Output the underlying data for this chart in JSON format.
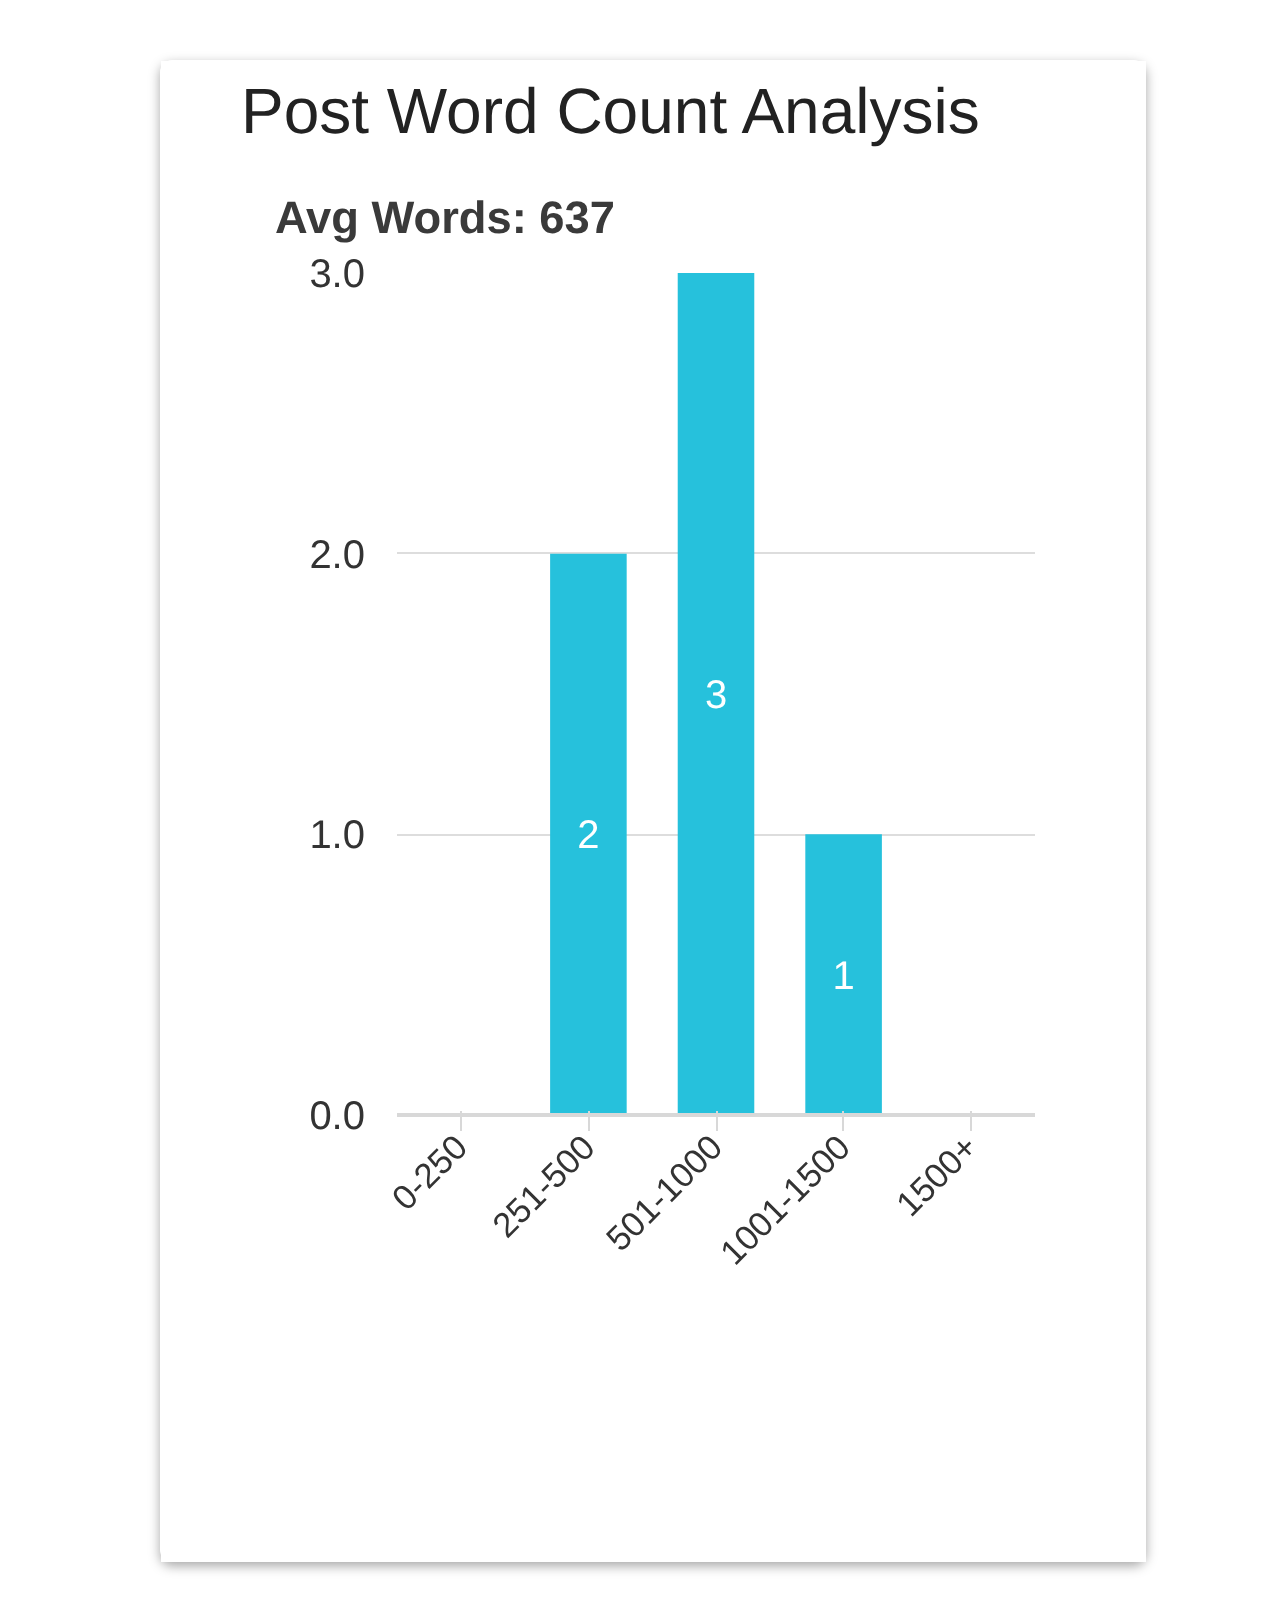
{
  "chart_data": {
    "type": "bar",
    "title": "Post Word Count Analysis",
    "subtitle": "Avg Words: 637",
    "categories": [
      "0-250",
      "251-500",
      "501-1000",
      "1001-1500",
      "1500+"
    ],
    "values": [
      0,
      2,
      3,
      1,
      0
    ],
    "value_labels": [
      null,
      "2",
      "3",
      "1",
      null
    ],
    "color": "#26c1dc",
    "ylim": [
      0,
      3
    ],
    "yticks": [
      {
        "value": 0,
        "label": "0.0"
      },
      {
        "value": 1,
        "label": "1.0"
      },
      {
        "value": 2,
        "label": "2.0"
      },
      {
        "value": 3,
        "label": "3.0"
      }
    ],
    "grid": "y"
  }
}
